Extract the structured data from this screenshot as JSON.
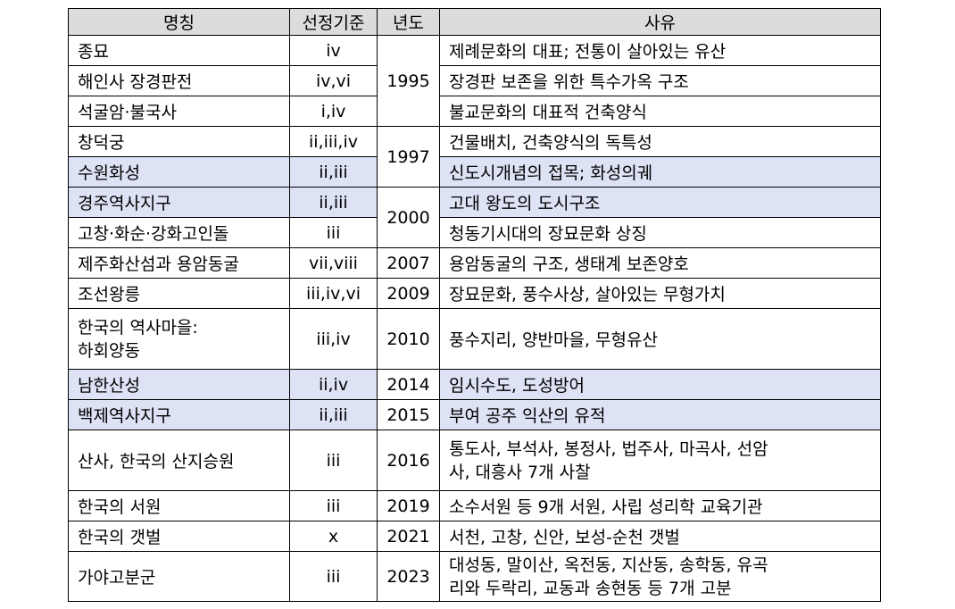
{
  "headers": {
    "name": "명칭",
    "criteria": "선정기준",
    "year": "년도",
    "reason": "사유"
  },
  "rows": [
    {
      "name": "종묘",
      "criteria": "iv",
      "year": "1995",
      "reason": "제례문화의 대표; 전통이 살아있는 유산"
    },
    {
      "name": "해인사 장경판전",
      "criteria": "iv,vi",
      "reason": "장경판 보존을 위한 특수가옥 구조"
    },
    {
      "name": "석굴암·불국사",
      "criteria": "i,iv",
      "reason": "불교문화의 대표적 건축양식"
    },
    {
      "name": "창덕궁",
      "criteria": "ii,iii,iv",
      "year": "1997",
      "reason": "건물배치, 건축양식의 독특성"
    },
    {
      "name": "수원화성",
      "criteria": "ii,iii",
      "reason": "신도시개념의 접목; 화성의궤"
    },
    {
      "name": "경주역사지구",
      "criteria": "ii,iii",
      "year": "2000",
      "reason": "고대 왕도의 도시구조"
    },
    {
      "name": "고창·화순·강화고인돌",
      "criteria": "iii",
      "reason": "청동기시대의 장묘문화 상징"
    },
    {
      "name": "제주화산섬과 용암동굴",
      "criteria": "vii,viii",
      "year": "2007",
      "reason": "용암동굴의 구조, 생태계 보존양호"
    },
    {
      "name": "조선왕릉",
      "criteria": "iii,iv,vi",
      "year": "2009",
      "reason": "장묘문화, 풍수사상, 살아있는 무형가치"
    },
    {
      "name_line1": "한국의 역사마을:",
      "name_line2": "하회양동",
      "criteria": "iii,iv",
      "year": "2010",
      "reason": "풍수지리, 양반마을, 무형유산"
    },
    {
      "name": "남한산성",
      "criteria": "ii,iv",
      "year": "2014",
      "reason": "임시수도, 도성방어"
    },
    {
      "name": "백제역사지구",
      "criteria": "ii,iii",
      "year": "2015",
      "reason": "부여 공주 익산의 유적"
    },
    {
      "name": "산사, 한국의 산지승원",
      "criteria": "iii",
      "year": "2016",
      "reason_line1": "통도사, 부석사, 봉정사, 법주사, 마곡사, 선암",
      "reason_line2": "사, 대흥사 7개 사찰"
    },
    {
      "name": "한국의 서원",
      "criteria": "iii",
      "year": "2019",
      "reason": "소수서원 등 9개 서원, 사립 성리학 교육기관"
    },
    {
      "name": "한국의 갯벌",
      "criteria": "x",
      "year": "2021",
      "reason": "서천, 고창, 신안, 보성-순천 갯벌"
    },
    {
      "name": "가야고분군",
      "criteria": "iii",
      "year": "2023",
      "reason_line1": "대성동, 말이산, 옥전동, 지산동, 송학동, 유곡",
      "reason_line2": "리와 두락리, 교동과 송현동 등 7개 고분"
    }
  ]
}
